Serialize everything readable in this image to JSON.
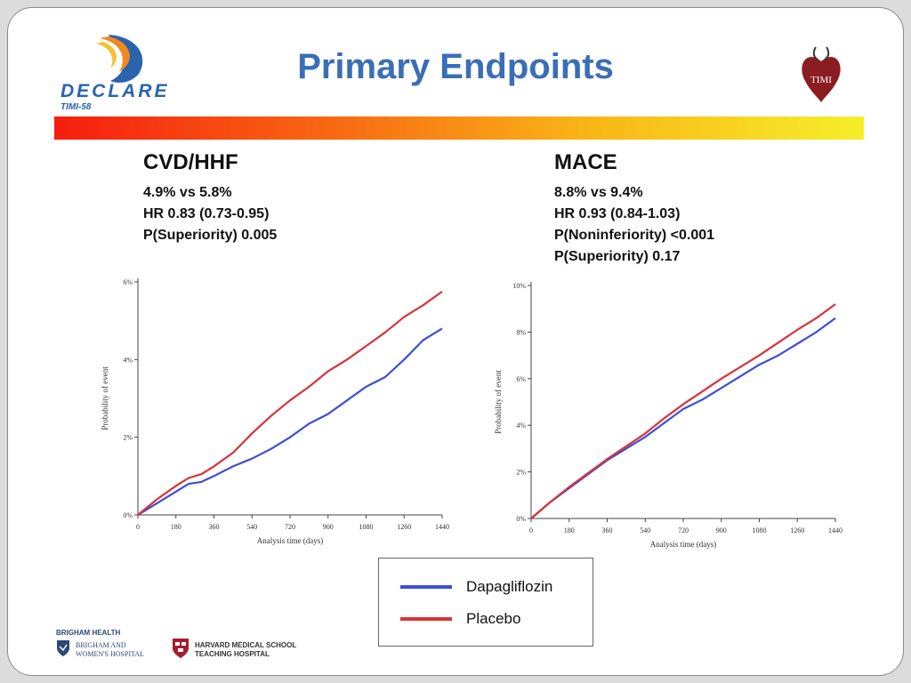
{
  "slide": {
    "title": "Primary Endpoints",
    "logo_left_text": "DECLARE",
    "logo_left_sub": "TIMI-58",
    "logo_right_text": "TIMI",
    "footer": {
      "brigham_line1": "BRIGHAM HEALTH",
      "brigham_line2": "BRIGHAM AND",
      "brigham_line3": "WOMEN'S HOSPITAL",
      "harvard_line1": "HARVARD MEDICAL SCHOOL",
      "harvard_line2": "TEACHING HOSPITAL"
    }
  },
  "panels": [
    {
      "title": "CVD/HHF",
      "stats": [
        "4.9% vs 5.8%",
        "HR 0.83 (0.73-0.95)",
        "P(Superiority) 0.005"
      ]
    },
    {
      "title": "MACE",
      "stats": [
        "8.8% vs 9.4%",
        "HR 0.93 (0.84-1.03)",
        "P(Noninferiority) <0.001",
        "P(Superiority) 0.17"
      ]
    }
  ],
  "legend": [
    {
      "name": "Dapagliflozin",
      "color": "#3b4fd8"
    },
    {
      "name": "Placebo",
      "color": "#d8323a"
    }
  ],
  "chart_data": [
    {
      "type": "line",
      "xlabel": "Analysis time (days)",
      "ylabel": "Probability of event",
      "xlim": [
        0,
        1440
      ],
      "ylim": [
        0,
        6
      ],
      "xticks": [
        0,
        180,
        360,
        540,
        720,
        900,
        1080,
        1260,
        1440
      ],
      "yticks": [
        0,
        2,
        4,
        6
      ],
      "ytick_labels": [
        "0%",
        "2%",
        "4%",
        "6%"
      ],
      "series": [
        {
          "name": "Dapagliflozin",
          "color": "#3b4fd8",
          "x": [
            0,
            90,
            180,
            240,
            300,
            360,
            450,
            540,
            630,
            720,
            810,
            900,
            990,
            1080,
            1170,
            1260,
            1350,
            1440
          ],
          "y": [
            0,
            0.3,
            0.6,
            0.8,
            0.85,
            1.0,
            1.25,
            1.45,
            1.7,
            2.0,
            2.35,
            2.6,
            2.95,
            3.3,
            3.55,
            4.0,
            4.5,
            4.8
          ]
        },
        {
          "name": "Placebo",
          "color": "#d8323a",
          "x": [
            0,
            90,
            180,
            240,
            300,
            360,
            450,
            540,
            630,
            720,
            810,
            900,
            990,
            1080,
            1170,
            1260,
            1350,
            1440
          ],
          "y": [
            0,
            0.4,
            0.75,
            0.95,
            1.05,
            1.25,
            1.6,
            2.1,
            2.55,
            2.95,
            3.3,
            3.7,
            4.0,
            4.35,
            4.7,
            5.1,
            5.4,
            5.75
          ]
        }
      ]
    },
    {
      "type": "line",
      "xlabel": "Analysis time (days)",
      "ylabel": "Probability of event",
      "xlim": [
        0,
        1440
      ],
      "ylim": [
        0,
        10
      ],
      "xticks": [
        0,
        180,
        360,
        540,
        720,
        900,
        1080,
        1260,
        1440
      ],
      "yticks": [
        0,
        2,
        4,
        6,
        8,
        10
      ],
      "ytick_labels": [
        "0%",
        "2%",
        "4%",
        "6%",
        "8%",
        "10%"
      ],
      "series": [
        {
          "name": "Dapagliflozin",
          "color": "#3b4fd8",
          "x": [
            0,
            90,
            180,
            270,
            360,
            450,
            540,
            630,
            720,
            810,
            900,
            990,
            1080,
            1170,
            1260,
            1350,
            1440
          ],
          "y": [
            0,
            0.7,
            1.3,
            1.9,
            2.5,
            3.0,
            3.5,
            4.1,
            4.7,
            5.1,
            5.6,
            6.1,
            6.6,
            7.0,
            7.5,
            8.0,
            8.6
          ]
        },
        {
          "name": "Placebo",
          "color": "#d8323a",
          "x": [
            0,
            90,
            180,
            270,
            360,
            450,
            540,
            630,
            720,
            810,
            900,
            990,
            1080,
            1170,
            1260,
            1350,
            1440
          ],
          "y": [
            0,
            0.7,
            1.35,
            1.95,
            2.55,
            3.1,
            3.65,
            4.3,
            4.9,
            5.45,
            6.0,
            6.5,
            7.0,
            7.55,
            8.1,
            8.6,
            9.2
          ]
        }
      ]
    }
  ]
}
